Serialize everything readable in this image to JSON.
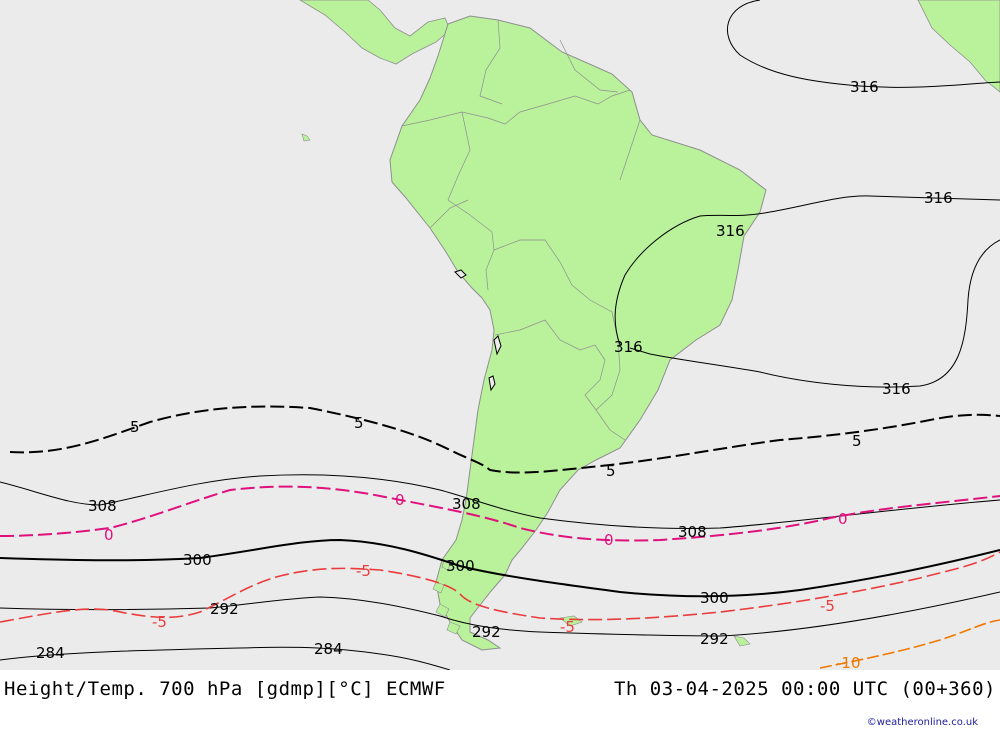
{
  "map": {
    "title": "Height/Temp. 700 hPa [gdmp][°C] ECMWF",
    "valid_time": "Th 03-04-2025 00:00 UTC (00+360)",
    "credit": "©weatheronline.co.uk",
    "colors": {
      "sea": "#ebebeb",
      "land": "#b9f29b",
      "border": "#8f8f8f",
      "height_contour": "#000000",
      "temp_neg5_black": "#000000",
      "temp_zero": "#e0107d",
      "temp_minus5": "#ea3c3c",
      "temp_minus10": "#f07800"
    },
    "height_labels": [
      "316",
      "316",
      "316",
      "316",
      "316",
      "308",
      "308",
      "308",
      "300",
      "300",
      "300",
      "292",
      "292",
      "292",
      "284",
      "284"
    ],
    "temp_labels": {
      "five": [
        "5",
        "5",
        "5",
        "5"
      ],
      "zero": [
        "0",
        "0",
        "0",
        "0"
      ],
      "minus5": [
        "-5",
        "-5",
        "-5",
        "-5"
      ],
      "minus10": [
        "-10"
      ]
    }
  }
}
